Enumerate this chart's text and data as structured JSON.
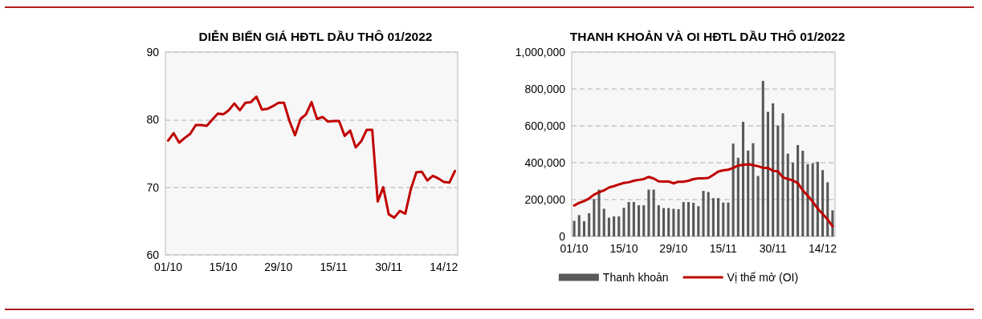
{
  "chart_data": [
    {
      "type": "line",
      "title": "DIỄN BIẾN GIÁ HĐTL DẦU THÔ 01/2022",
      "categories": [
        "01/10",
        null,
        null,
        null,
        null,
        null,
        null,
        null,
        null,
        null,
        "15/10",
        null,
        null,
        null,
        null,
        null,
        null,
        null,
        null,
        null,
        "29/10",
        null,
        null,
        null,
        null,
        null,
        null,
        null,
        null,
        null,
        "15/11",
        null,
        null,
        null,
        null,
        null,
        null,
        null,
        null,
        null,
        "30/11",
        null,
        null,
        null,
        null,
        null,
        null,
        null,
        null,
        null,
        "14/12",
        null,
        null
      ],
      "values": [
        76.9,
        78.0,
        76.6,
        77.3,
        77.9,
        79.2,
        79.2,
        79.1,
        80.0,
        80.9,
        80.8,
        81.4,
        82.4,
        81.4,
        82.5,
        82.6,
        83.4,
        81.5,
        81.6,
        82.0,
        82.5,
        82.5,
        79.8,
        77.7,
        80.1,
        80.8,
        82.6,
        80.1,
        80.4,
        79.7,
        79.8,
        79.8,
        77.6,
        78.4,
        75.9,
        76.8,
        78.5,
        78.5,
        67.9,
        70.0,
        66.0,
        65.5,
        66.5,
        66.1,
        69.7,
        72.2,
        72.3,
        71.0,
        71.7,
        71.3,
        70.8,
        70.7,
        72.4
      ],
      "color": "#c00000",
      "ylim": [
        60,
        90
      ],
      "yticks": [
        60,
        70,
        80,
        90
      ],
      "grid": "y"
    },
    {
      "type": "bar",
      "title": "THANH KHOẢN VÀ OI HĐTL DẦU THÔ 01/2022",
      "categories": [
        "01/10",
        null,
        null,
        null,
        null,
        null,
        null,
        null,
        null,
        null,
        "15/10",
        null,
        null,
        null,
        null,
        null,
        null,
        null,
        null,
        null,
        "29/10",
        null,
        null,
        null,
        null,
        null,
        null,
        null,
        null,
        null,
        "15/11",
        null,
        null,
        null,
        null,
        null,
        null,
        null,
        null,
        null,
        "30/11",
        null,
        null,
        null,
        null,
        null,
        null,
        null,
        null,
        null,
        "14/12",
        null,
        null
      ],
      "series": [
        {
          "name": "Thanh khoản",
          "color": "#595959",
          "values": [
            85000,
            116000,
            83000,
            126000,
            203000,
            254000,
            150000,
            102000,
            109000,
            109000,
            155000,
            187000,
            187000,
            169000,
            169000,
            254000,
            254000,
            169000,
            154000,
            154000,
            150000,
            148000,
            187000,
            187000,
            183000,
            164000,
            247000,
            241000,
            208000,
            208000,
            184000,
            184000,
            504000,
            427000,
            622000,
            466000,
            506000,
            328000,
            844000,
            676000,
            722000,
            602000,
            668000,
            449000,
            401000,
            496000,
            465000,
            392000,
            397000,
            405000,
            360000,
            294000,
            142000
          ]
        },
        {
          "name": "Vị thế mở (OI)",
          "type": "line",
          "color": "#c00000",
          "values": [
            168000,
            182000,
            192000,
            206000,
            227000,
            240000,
            250000,
            265000,
            273000,
            282000,
            290000,
            294000,
            302000,
            307000,
            311000,
            323000,
            314000,
            299000,
            298000,
            298000,
            288000,
            297000,
            297000,
            302000,
            311000,
            315000,
            315000,
            317000,
            334000,
            352000,
            359000,
            362000,
            371000,
            385000,
            388000,
            391000,
            387000,
            381000,
            372000,
            372000,
            356000,
            353000,
            320000,
            312000,
            304000,
            290000,
            250000,
            221000,
            189000,
            151000,
            122000,
            92000,
            55000
          ]
        }
      ],
      "ylim": [
        0,
        1000000
      ],
      "yticks": [
        0,
        {
          "value": 200000,
          "label": "200,000"
        },
        {
          "value": 400000,
          "label": "400,000"
        },
        {
          "value": 600000,
          "label": "600,000"
        },
        {
          "value": 800000,
          "label": "800,000"
        },
        {
          "value": 1000000,
          "label": "1,000,000"
        }
      ],
      "grid": "y",
      "legend": "bottom"
    }
  ]
}
